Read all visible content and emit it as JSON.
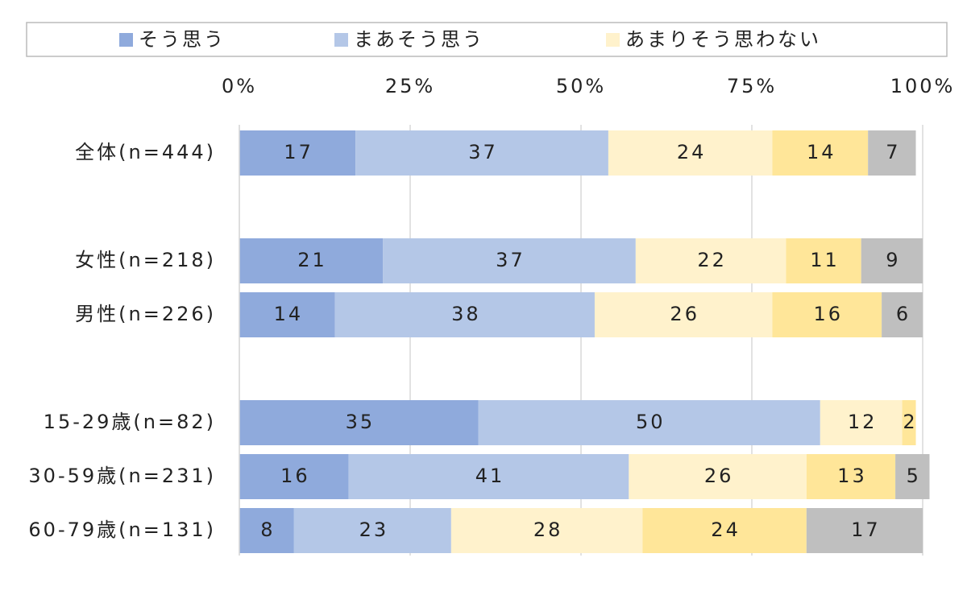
{
  "chart_data": {
    "type": "stacked_bar_100",
    "orientation": "horizontal",
    "categories": [
      "全体(n=444)",
      "女性(n=218)",
      "男性(n=226)",
      "15-29歳(n=82)",
      "30-59歳(n=231)",
      "60-79歳(n=131)"
    ],
    "series": [
      {
        "name": "そう思う",
        "color": "#8faadc",
        "values": [
          17,
          21,
          14,
          35,
          16,
          8
        ]
      },
      {
        "name": "まあそう思う",
        "color": "#b4c7e7",
        "values": [
          37,
          37,
          38,
          50,
          41,
          23
        ]
      },
      {
        "name": "あまりそう思わない",
        "color": "#fff2cc",
        "values": [
          24,
          22,
          26,
          12,
          26,
          28
        ]
      },
      {
        "color": "#ffe699",
        "values": [
          14,
          11,
          16,
          2,
          13,
          24
        ]
      },
      {
        "color": "#bfbfbf",
        "values": [
          7,
          9,
          6,
          null,
          5,
          17
        ]
      }
    ],
    "xlim": [
      0,
      100
    ],
    "xticks": [
      {
        "value": 0,
        "label": "0%"
      },
      {
        "value": 25,
        "label": "25%"
      },
      {
        "value": 50,
        "label": "50%"
      },
      {
        "value": 75,
        "label": "75%"
      },
      {
        "value": 100,
        "label": "100%"
      }
    ],
    "grid": true,
    "legend": "top"
  }
}
